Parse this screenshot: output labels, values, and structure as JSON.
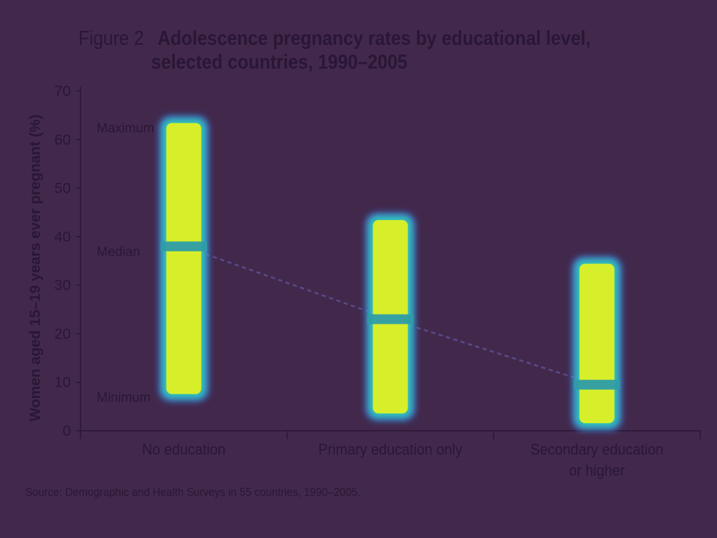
{
  "figure": {
    "label": "Figure 2",
    "title_line1": "Adolescence pregnancy rates by educational level,",
    "title_line2": "selected countries, 1990–2005"
  },
  "source": "Source: Demographic and Health Surveys in 55 countries, 1990–2005.",
  "colors": {
    "background": "#42294c",
    "text": "#2a1636",
    "gridline": "#3f6fd8",
    "range_bar": "#d6ef2a",
    "range_bar_glow": "#2fc8b8",
    "median_marker": "#2e9ca8",
    "trend_line": "#5a4a8a"
  },
  "chart_data": {
    "type": "bar",
    "subtype": "range-with-median",
    "title": "Adolescence pregnancy rates by educational level, selected countries, 1990–2005",
    "ylabel": "Women aged 15–19 years ever pregnant (%)",
    "xlabel": "",
    "ylim": [
      0,
      70
    ],
    "yticks": [
      0,
      10,
      20,
      30,
      40,
      50,
      60,
      70
    ],
    "grid": true,
    "categories": [
      {
        "label_lines": [
          "No education"
        ],
        "min": 7,
        "max": 64,
        "median": 38
      },
      {
        "label_lines": [
          "Primary education only"
        ],
        "min": 3,
        "max": 44,
        "median": 23
      },
      {
        "label_lines": [
          "Secondary education",
          "or higher"
        ],
        "min": 1,
        "max": 35,
        "median": 9.5
      }
    ],
    "annotations": [
      {
        "text": "Maximum",
        "y": 62.5
      },
      {
        "text": "Median",
        "y": 37
      },
      {
        "text": "Minimum",
        "y": 7
      }
    ],
    "trend_line": "dashed line connecting medians"
  }
}
